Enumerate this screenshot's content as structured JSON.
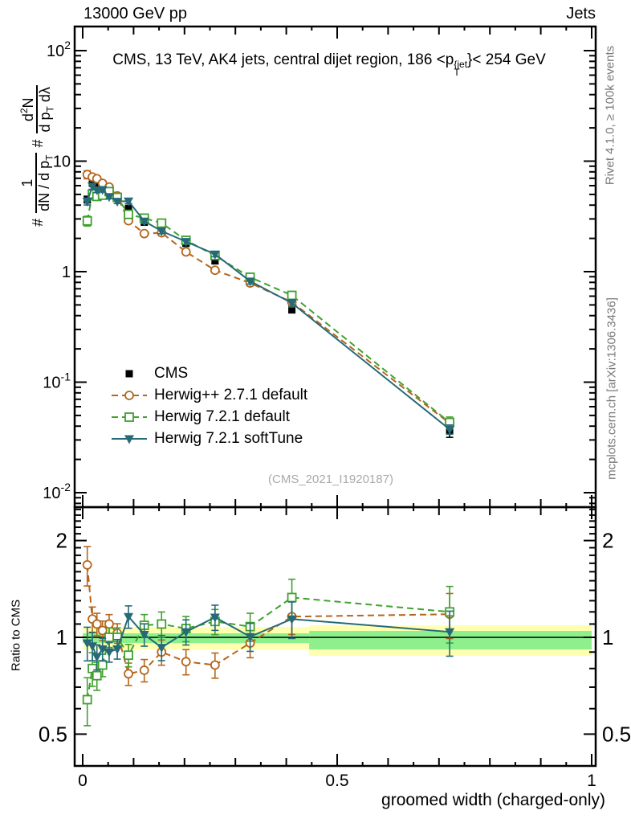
{
  "header": {
    "left": "13000 GeV pp",
    "right": "Jets"
  },
  "title": {
    "prefix": "CMS, 13 TeV, AK4 jets, central dijet region, 186 <p",
    "sup": "{jet",
    "sub": "T",
    "suffix": "}< 254 GeV"
  },
  "watermark": "(CMS_2021_I1920187)",
  "notes": {
    "rivet": "Rivet 4.1.0, ≥ 100k events",
    "mcplots": "mcplots.cern.ch [arXiv:1306.3436]"
  },
  "ylabel_main": {
    "hash1": "#",
    "f1_num": "1",
    "f1_den_pre": "dN / d p",
    "f1_den_sub": "T",
    "hash2": "#",
    "f2_num_pre": "d",
    "f2_num_sup": "2",
    "f2_num_post": "N",
    "f2_den_pre": "d p",
    "f2_den_sub": "T",
    "f2_den_post": " dλ"
  },
  "ylabel_ratio": "Ratio to CMS",
  "xlabel": "groomed width (charged-only)",
  "axes": {
    "x": {
      "min": 0,
      "max": 1,
      "major_ticks": [
        0,
        0.5,
        1
      ],
      "major_labels": [
        "0",
        "0.5",
        "1"
      ],
      "medium_step": 0.1,
      "minor_step": 0.05
    },
    "y_main": {
      "scale": "log",
      "decade_labels": [
        {
          "base": "10",
          "exp": "2",
          "value": 100
        },
        {
          "base": "10",
          "exp": "",
          "value": 10
        },
        {
          "base": "1",
          "exp": "",
          "value": 1
        },
        {
          "base": "10",
          "exp": "-1",
          "value": 0.1
        },
        {
          "base": "10",
          "exp": "-2",
          "value": 0.01
        }
      ]
    },
    "y_ratio": {
      "scale": "log",
      "labeled_ticks": [
        2,
        1,
        0.5
      ],
      "tick_labels": [
        "2",
        "1",
        "0.5"
      ],
      "minor_from": 0.4,
      "minor_to": 2.5,
      "minor_step": 0.1
    }
  },
  "legend": {
    "items": [
      {
        "label": "CMS",
        "marker": "filled-square",
        "line": "none",
        "color": "#000000"
      },
      {
        "label": "Herwig++ 2.7.1 default",
        "marker": "open-circle",
        "line": "dashed",
        "color": "#b5651d"
      },
      {
        "label": "Herwig 7.2.1 default",
        "marker": "open-square",
        "line": "dashed",
        "color": "#3fa12e"
      },
      {
        "label": "Herwig 7.2.1 softTune",
        "marker": "filled-triangle-down",
        "line": "solid",
        "color": "#266a77"
      }
    ]
  },
  "chart_data": {
    "type": "line",
    "title": "CMS, 13 TeV, AK4 jets, central dijet region, 186 < pT{jet} < 254 GeV",
    "xlabel": "groomed width (charged-only)",
    "ylabel": "# 1/(dN/dpT) # d2N/(dpT dlambda)",
    "xlim": [
      0,
      1
    ],
    "ylim_main": [
      0.0075,
      160
    ],
    "ylim_ratio": [
      0.4,
      2.5
    ],
    "x": [
      0.009,
      0.019,
      0.028,
      0.039,
      0.052,
      0.068,
      0.09,
      0.121,
      0.155,
      0.203,
      0.26,
      0.329,
      0.411,
      0.721
    ],
    "series": [
      {
        "name": "CMS",
        "color": "#000000",
        "marker": "filled-square",
        "line": "none",
        "values": [
          4.5,
          6.3,
          6.3,
          6.0,
          5.3,
          4.7,
          3.75,
          2.8,
          2.5,
          1.8,
          1.25,
          0.82,
          0.46,
          0.036
        ],
        "ratio": [
          1,
          1,
          1,
          1,
          1,
          1,
          1,
          1,
          1,
          1,
          1,
          1,
          1,
          1
        ],
        "err": [
          0.07,
          0.05,
          0.05,
          0.04,
          0.04,
          0.04,
          0.04,
          0.04,
          0.05,
          0.05,
          0.05,
          0.06,
          0.08,
          0.12
        ]
      },
      {
        "name": "Herwig++ 2.7.1 default",
        "color": "#b5651d",
        "marker": "open-circle",
        "line": "dashed",
        "values": [
          7.56,
          7.18,
          6.93,
          6.3,
          5.83,
          4.84,
          2.89,
          2.21,
          2.25,
          1.51,
          1.03,
          0.79,
          0.53,
          0.0425
        ],
        "ratio": [
          1.68,
          1.14,
          1.1,
          1.05,
          1.1,
          1.03,
          0.77,
          0.79,
          0.9,
          0.84,
          0.82,
          0.96,
          1.16,
          1.18
        ],
        "err": [
          0.14,
          0.09,
          0.08,
          0.07,
          0.07,
          0.07,
          0.08,
          0.08,
          0.09,
          0.09,
          0.09,
          0.1,
          0.12,
          0.16
        ]
      },
      {
        "name": "Herwig 7.2.1 default",
        "color": "#3fa12e",
        "marker": "open-square",
        "line": "dashed",
        "values": [
          2.88,
          5.04,
          4.79,
          4.92,
          5.3,
          4.7,
          3.3,
          3.05,
          2.75,
          1.92,
          1.4,
          0.89,
          0.61,
          0.0432
        ],
        "ratio": [
          0.64,
          0.8,
          0.76,
          0.82,
          1.0,
          1.0,
          0.88,
          1.09,
          1.1,
          1.065,
          1.12,
          1.08,
          1.33,
          1.2
        ],
        "err": [
          0.17,
          0.12,
          0.1,
          0.08,
          0.07,
          0.07,
          0.08,
          0.08,
          0.09,
          0.09,
          0.09,
          0.1,
          0.14,
          0.2
        ]
      },
      {
        "name": "Herwig 7.2.1 softTune",
        "color": "#266a77",
        "marker": "filled-triangle-down",
        "line": "solid",
        "values": [
          4.32,
          5.92,
          5.48,
          5.52,
          4.77,
          4.32,
          4.35,
          2.86,
          2.33,
          1.87,
          1.44,
          0.82,
          0.52,
          0.0374
        ],
        "ratio": [
          0.96,
          0.94,
          0.87,
          0.92,
          0.9,
          0.92,
          1.16,
          1.02,
          0.93,
          1.04,
          1.155,
          1.005,
          1.14,
          1.04
        ],
        "err": [
          0.12,
          0.1,
          0.09,
          0.08,
          0.07,
          0.07,
          0.08,
          0.08,
          0.09,
          0.09,
          0.09,
          0.1,
          0.13,
          0.16
        ]
      }
    ],
    "ratio_bands": [
      {
        "x0": 0.0,
        "x1": 0.445,
        "yellow": [
          0.917,
          1.078
        ],
        "green": [
          0.96,
          1.029
        ]
      },
      {
        "x0": 0.445,
        "x1": 1.0,
        "yellow": [
          0.876,
          1.09
        ],
        "green": [
          0.917,
          1.047
        ]
      }
    ],
    "band_colors": {
      "yellow": "#ffffb0",
      "green": "#8df08d"
    }
  }
}
